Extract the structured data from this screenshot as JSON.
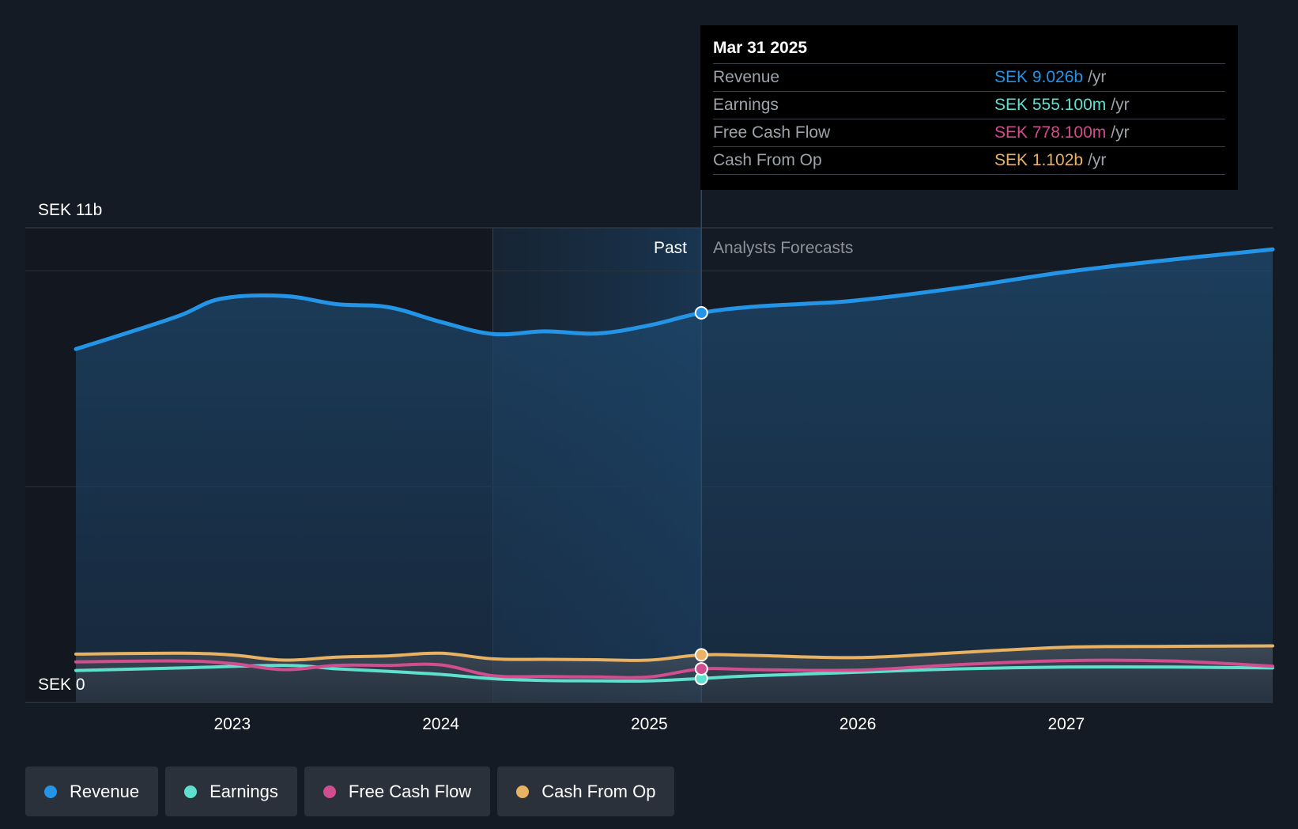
{
  "chart_data": {
    "type": "area",
    "currency": "SEK",
    "y_axis": {
      "top_label": "SEK 11b",
      "bottom_label": "SEK 0",
      "ylim": [
        0,
        11
      ]
    },
    "x_ticks": [
      "2023",
      "2024",
      "2025",
      "2026",
      "2027"
    ],
    "x_range": [
      2022.25,
      2027.99
    ],
    "past_range": [
      2024.25,
      2025.25
    ],
    "divider_x": 2025.25,
    "labels": {
      "past": "Past",
      "forecast": "Analysts Forecasts"
    },
    "series": [
      {
        "name": "Revenue",
        "color": "#2394e6",
        "points": [
          [
            2022.25,
            8.19
          ],
          [
            2022.5,
            8.57
          ],
          [
            2022.75,
            8.97
          ],
          [
            2022.95,
            9.36
          ],
          [
            2023.25,
            9.42
          ],
          [
            2023.5,
            9.23
          ],
          [
            2023.75,
            9.16
          ],
          [
            2024.0,
            8.82
          ],
          [
            2024.25,
            8.54
          ],
          [
            2024.5,
            8.6
          ],
          [
            2024.75,
            8.55
          ],
          [
            2025.0,
            8.74
          ],
          [
            2025.25,
            9.03
          ],
          [
            2025.5,
            9.17
          ],
          [
            2025.75,
            9.24
          ],
          [
            2026.0,
            9.32
          ],
          [
            2026.5,
            9.62
          ],
          [
            2027.0,
            9.98
          ],
          [
            2027.5,
            10.26
          ],
          [
            2027.99,
            10.5
          ]
        ]
      },
      {
        "name": "Earnings",
        "color": "#5fe0cf",
        "points": [
          [
            2022.25,
            0.74
          ],
          [
            2022.75,
            0.8
          ],
          [
            2023.25,
            0.86
          ],
          [
            2023.5,
            0.78
          ],
          [
            2023.75,
            0.72
          ],
          [
            2024.0,
            0.65
          ],
          [
            2024.25,
            0.55
          ],
          [
            2024.5,
            0.51
          ],
          [
            2024.75,
            0.5
          ],
          [
            2025.0,
            0.5
          ],
          [
            2025.25,
            0.555
          ],
          [
            2025.5,
            0.62
          ],
          [
            2026.0,
            0.7
          ],
          [
            2026.5,
            0.78
          ],
          [
            2027.0,
            0.82
          ],
          [
            2027.5,
            0.82
          ],
          [
            2027.99,
            0.8
          ]
        ]
      },
      {
        "name": "Free Cash Flow",
        "color": "#d04d8e",
        "points": [
          [
            2022.25,
            0.94
          ],
          [
            2022.75,
            0.96
          ],
          [
            2023.0,
            0.9
          ],
          [
            2023.25,
            0.76
          ],
          [
            2023.5,
            0.86
          ],
          [
            2023.75,
            0.86
          ],
          [
            2024.0,
            0.87
          ],
          [
            2024.25,
            0.62
          ],
          [
            2024.5,
            0.6
          ],
          [
            2024.75,
            0.59
          ],
          [
            2025.0,
            0.59
          ],
          [
            2025.25,
            0.778
          ],
          [
            2025.5,
            0.76
          ],
          [
            2026.0,
            0.75
          ],
          [
            2026.5,
            0.88
          ],
          [
            2027.0,
            0.97
          ],
          [
            2027.5,
            0.96
          ],
          [
            2027.99,
            0.84
          ]
        ]
      },
      {
        "name": "Cash From Op",
        "color": "#e8b262",
        "points": [
          [
            2022.25,
            1.12
          ],
          [
            2022.75,
            1.14
          ],
          [
            2023.0,
            1.1
          ],
          [
            2023.25,
            0.98
          ],
          [
            2023.5,
            1.05
          ],
          [
            2023.75,
            1.08
          ],
          [
            2024.0,
            1.14
          ],
          [
            2024.25,
            1.01
          ],
          [
            2024.5,
            1.0
          ],
          [
            2024.75,
            0.99
          ],
          [
            2025.0,
            0.98
          ],
          [
            2025.25,
            1.102
          ],
          [
            2025.5,
            1.09
          ],
          [
            2026.0,
            1.04
          ],
          [
            2026.5,
            1.16
          ],
          [
            2027.0,
            1.28
          ],
          [
            2027.5,
            1.3
          ],
          [
            2027.99,
            1.31
          ]
        ]
      }
    ]
  },
  "tooltip": {
    "date": "Mar 31 2025",
    "rows": [
      {
        "label": "Revenue",
        "value": "SEK 9.026b",
        "unit": "/yr",
        "color": "#2394e6"
      },
      {
        "label": "Earnings",
        "value": "SEK 555.100m",
        "unit": "/yr",
        "color": "#5fe0cf"
      },
      {
        "label": "Free Cash Flow",
        "value": "SEK 778.100m",
        "unit": "/yr",
        "color": "#d04d8e"
      },
      {
        "label": "Cash From Op",
        "value": "SEK 1.102b",
        "unit": "/yr",
        "color": "#e8b262"
      }
    ]
  },
  "legend": [
    {
      "label": "Revenue",
      "color": "#2394e6"
    },
    {
      "label": "Earnings",
      "color": "#5fe0cf"
    },
    {
      "label": "Free Cash Flow",
      "color": "#d04d8e"
    },
    {
      "label": "Cash From Op",
      "color": "#e8b262"
    }
  ]
}
